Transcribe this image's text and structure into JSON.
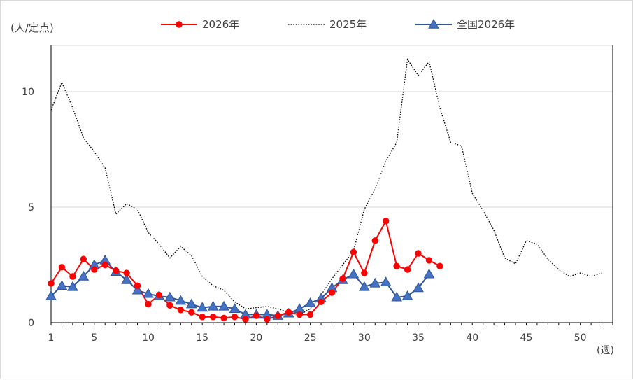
{
  "chart_data": {
    "type": "line",
    "ylabel": "(人/定点)",
    "xlabel": "(週)",
    "xlim": [
      1,
      53
    ],
    "ylim": [
      0,
      12
    ],
    "xticks": [
      1,
      5,
      10,
      15,
      20,
      25,
      30,
      35,
      40,
      45,
      50
    ],
    "yticks": [
      0,
      5,
      10
    ],
    "grid": "horizontal",
    "legend_position": "top",
    "colors": {
      "s2026": "#ff0000",
      "s2025": "#000000",
      "national2026": "#2f5597",
      "national_marker": "#4472c4",
      "grid": "#d9d9d9",
      "axis": "#000000"
    },
    "series": [
      {
        "name": "2026年",
        "style": "solid-circle",
        "x": [
          1,
          2,
          3,
          4,
          5,
          6,
          7,
          8,
          9,
          10,
          11,
          12,
          13,
          14,
          15,
          16,
          17,
          18,
          19,
          20,
          21,
          22,
          23,
          24,
          25,
          26,
          27,
          28,
          29,
          30,
          31,
          32,
          33,
          34,
          35,
          36,
          37
        ],
        "values": [
          1.7,
          2.4,
          2.0,
          2.75,
          2.3,
          2.5,
          2.25,
          2.15,
          1.6,
          0.8,
          1.2,
          0.75,
          0.55,
          0.45,
          0.25,
          0.25,
          0.2,
          0.25,
          0.15,
          0.3,
          0.15,
          0.3,
          0.45,
          0.35,
          0.35,
          0.9,
          1.3,
          1.9,
          3.05,
          2.15,
          3.55,
          4.4,
          2.45,
          2.3,
          3.0,
          2.7,
          2.45
        ]
      },
      {
        "name": "2025年",
        "style": "dotted",
        "x": [
          1,
          2,
          3,
          4,
          5,
          6,
          7,
          8,
          9,
          10,
          11,
          12,
          13,
          14,
          15,
          16,
          17,
          18,
          19,
          20,
          21,
          22,
          23,
          24,
          25,
          26,
          27,
          28,
          29,
          30,
          31,
          32,
          33,
          34,
          35,
          36,
          37,
          38,
          39,
          40,
          41,
          42,
          43,
          44,
          45,
          46,
          47,
          48,
          49,
          50,
          51,
          52
        ],
        "values": [
          9.2,
          10.4,
          9.3,
          8.0,
          7.4,
          6.7,
          4.7,
          5.15,
          4.9,
          3.9,
          3.4,
          2.8,
          3.3,
          2.9,
          2.0,
          1.6,
          1.4,
          0.9,
          0.6,
          0.65,
          0.7,
          0.6,
          0.45,
          0.35,
          0.6,
          1.2,
          1.9,
          2.5,
          3.1,
          4.9,
          5.8,
          7.0,
          7.8,
          11.4,
          10.7,
          11.3,
          9.3,
          7.8,
          7.65,
          5.6,
          4.85,
          4.0,
          2.8,
          2.55,
          3.55,
          3.4,
          2.75,
          2.3,
          2.0,
          2.15,
          2.0,
          2.15
        ]
      },
      {
        "name": "全国2026年",
        "style": "solid-triangle",
        "x": [
          1,
          2,
          3,
          4,
          5,
          6,
          7,
          8,
          9,
          10,
          11,
          12,
          13,
          14,
          15,
          16,
          17,
          18,
          19,
          20,
          21,
          22,
          23,
          24,
          25,
          26,
          27,
          28,
          29,
          30,
          31,
          32,
          33,
          34,
          35,
          36
        ],
        "values": [
          1.15,
          1.6,
          1.55,
          2.0,
          2.5,
          2.7,
          2.2,
          1.85,
          1.4,
          1.25,
          1.15,
          1.1,
          0.95,
          0.8,
          0.65,
          0.7,
          0.7,
          0.6,
          0.35,
          0.35,
          0.35,
          0.3,
          0.4,
          0.6,
          0.85,
          1.05,
          1.5,
          1.85,
          2.1,
          1.55,
          1.7,
          1.75,
          1.1,
          1.15,
          1.5,
          2.1
        ]
      }
    ]
  }
}
